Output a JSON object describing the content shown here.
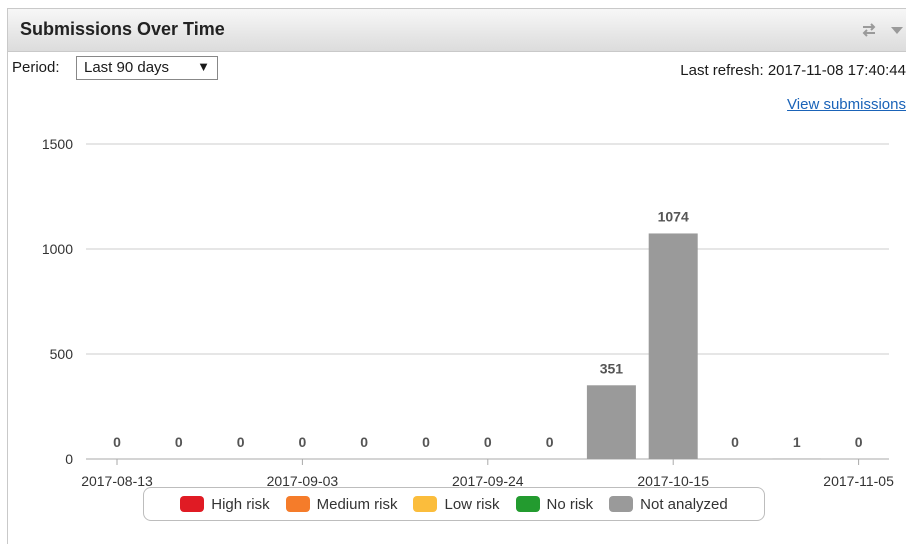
{
  "widget": {
    "title": "Submissions Over Time",
    "period_label": "Period:",
    "period_value": "Last 90 days",
    "period_arrow": "▼",
    "last_refresh": "Last refresh: 2017-11-08 17:40:44",
    "view_link": "View submissions",
    "icons": [
      "refresh-icon",
      "dropdown-menu-icon"
    ]
  },
  "chart_data": {
    "type": "bar",
    "ylim": [
      0,
      1500
    ],
    "yticks": [
      0,
      500,
      1000,
      1500
    ],
    "grid": true,
    "legend_placement": "bottom",
    "xticks": [
      "2017-08-13",
      "2017-09-03",
      "2017-09-24",
      "2017-10-15",
      "2017-11-05"
    ],
    "values": [
      0,
      0,
      0,
      0,
      0,
      0,
      0,
      0,
      351,
      1074,
      0,
      1,
      0
    ],
    "bar_color": "#9a9a9a",
    "legend": [
      {
        "label": "High risk",
        "color": "#e01b24"
      },
      {
        "label": "Medium risk",
        "color": "#f57c2a"
      },
      {
        "label": "Low risk",
        "color": "#fbbd3c"
      },
      {
        "label": "No risk",
        "color": "#239b2f"
      },
      {
        "label": "Not analyzed",
        "color": "#9a9a9a"
      }
    ]
  }
}
